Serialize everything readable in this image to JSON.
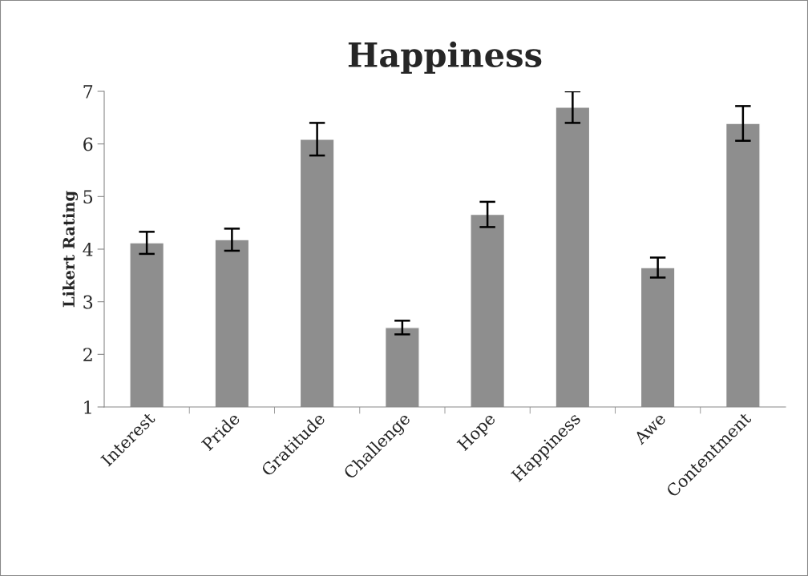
{
  "chart_data": {
    "type": "bar",
    "title": "Happiness",
    "ylabel": "Likert Rating",
    "categories": [
      "Interest",
      "Pride",
      "Gratitude",
      "Challenge",
      "Hope",
      "Happiness",
      "Awe",
      "Contentment"
    ],
    "values": [
      4.12,
      4.18,
      6.09,
      2.51,
      4.66,
      6.7,
      3.65,
      6.39
    ],
    "errors": [
      0.21,
      0.21,
      0.31,
      0.13,
      0.24,
      0.3,
      0.19,
      0.33
    ],
    "color": "#8e8e8e",
    "ylim": [
      1,
      7
    ],
    "yticks": [
      1,
      2,
      3,
      4,
      5,
      6,
      7
    ],
    "grid": false
  }
}
